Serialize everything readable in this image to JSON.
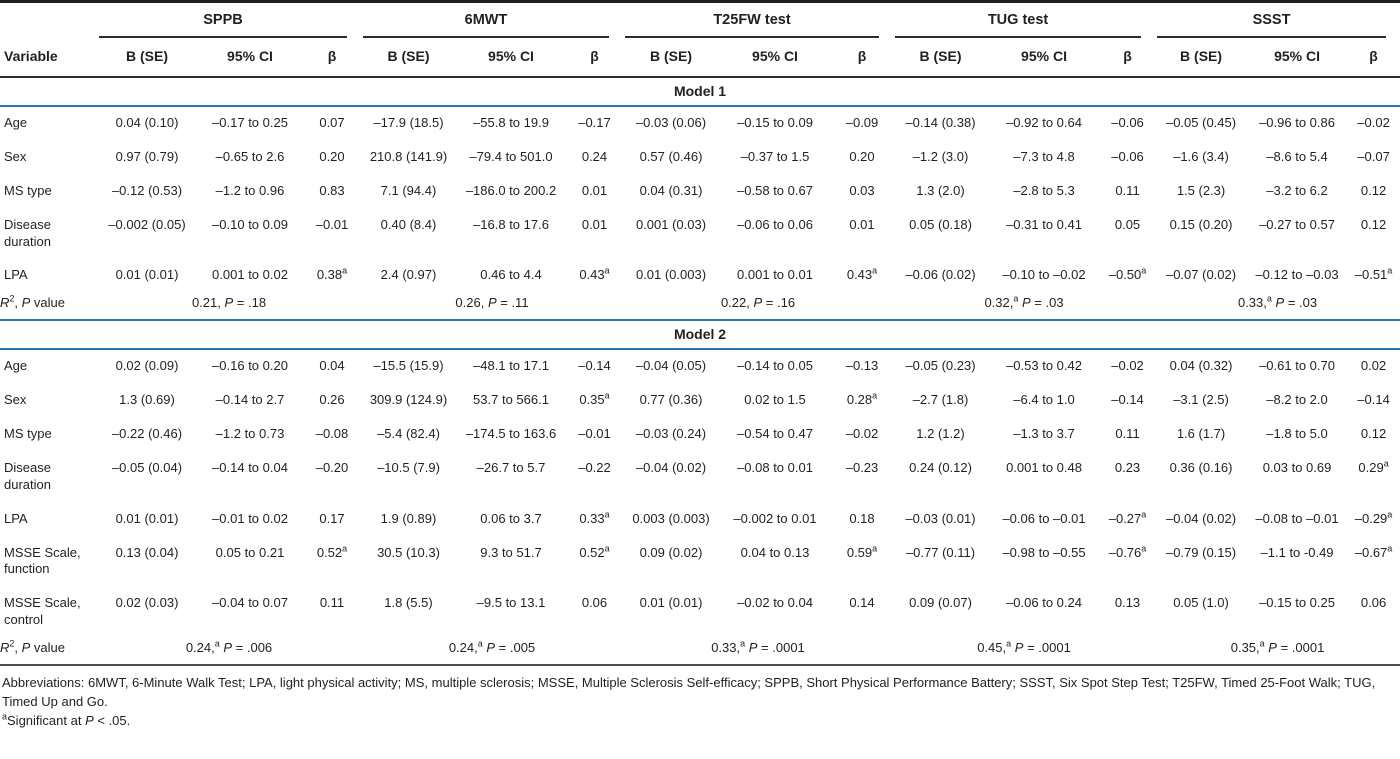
{
  "table": {
    "groups": [
      {
        "label": "SPPB"
      },
      {
        "label": "6MWT"
      },
      {
        "label": "T25FW test"
      },
      {
        "label": "TUG test"
      },
      {
        "label": "SSST"
      }
    ],
    "subheaders": {
      "variable": "Variable",
      "b_se": "B (SE)",
      "ci": "95% CI",
      "beta": "β"
    },
    "sections": [
      {
        "title": "Model 1",
        "rows": [
          {
            "variable": "Age",
            "cells": [
              [
                "0.04 (0.10)",
                "–0.17 to 0.25",
                "0.07"
              ],
              [
                "–17.9 (18.5)",
                "–55.8 to 19.9",
                "–0.17"
              ],
              [
                "–0.03 (0.06)",
                "–0.15 to 0.09",
                "–0.09"
              ],
              [
                "–0.14 (0.38)",
                "–0.92 to 0.64",
                "–0.06"
              ],
              [
                "–0.05 (0.45)",
                "–0.96 to 0.86",
                "–0.02"
              ]
            ]
          },
          {
            "variable": "Sex",
            "cells": [
              [
                "0.97 (0.79)",
                "–0.65 to 2.6",
                "0.20"
              ],
              [
                "210.8 (141.9)",
                "–79.4 to 501.0",
                "0.24"
              ],
              [
                "0.57 (0.46)",
                "–0.37 to 1.5",
                "0.20"
              ],
              [
                "–1.2 (3.0)",
                "–7.3 to 4.8",
                "–0.06"
              ],
              [
                "–1.6 (3.4)",
                "–8.6 to 5.4",
                "–0.07"
              ]
            ]
          },
          {
            "variable": "MS type",
            "cells": [
              [
                "–0.12 (0.53)",
                "–1.2 to 0.96",
                "0.83"
              ],
              [
                "7.1 (94.4)",
                "–186.0 to 200.2",
                "0.01"
              ],
              [
                "0.04 (0.31)",
                "–0.58 to 0.67",
                "0.03"
              ],
              [
                "1.3 (2.0)",
                "–2.8 to 5.3",
                "0.11"
              ],
              [
                "1.5 (2.3)",
                "–3.2 to 6.2",
                "0.12"
              ]
            ]
          },
          {
            "variable": "Disease duration",
            "cells": [
              [
                "–0.002 (0.05)",
                "–0.10 to 0.09",
                "–0.01"
              ],
              [
                "0.40 (8.4)",
                "–16.8 to 17.6",
                "0.01"
              ],
              [
                "0.001 (0.03)",
                "–0.06 to 0.06",
                "0.01"
              ],
              [
                "0.05 (0.18)",
                "–0.31 to 0.41",
                "0.05"
              ],
              [
                "0.15 (0.20)",
                "–0.27 to 0.57",
                "0.12"
              ]
            ]
          },
          {
            "variable": "LPA",
            "cells": [
              [
                "0.01 (0.01)",
                "0.001 to 0.02",
                "0.38ᵃ"
              ],
              [
                "2.4 (0.97)",
                "0.46 to 4.4",
                "0.43ᵃ"
              ],
              [
                "0.01 (0.003)",
                "0.001 to 0.01",
                "0.43ᵃ"
              ],
              [
                "–0.06 (0.02)",
                "–0.10 to –0.02",
                "–0.50ᵃ"
              ],
              [
                "–0.07 (0.02)",
                "–0.12 to –0.03",
                "–0.51ᵃ"
              ]
            ]
          }
        ],
        "r2_row": {
          "label": "R2, P value",
          "values": [
            "0.21, P = .18",
            "0.26, P = .11",
            "0.22, P = .16",
            "0.32,ᵃ P = .03",
            "0.33,ᵃ P = .03"
          ]
        }
      },
      {
        "title": "Model 2",
        "rows": [
          {
            "variable": "Age",
            "cells": [
              [
                "0.02 (0.09)",
                "–0.16 to 0.20",
                "0.04"
              ],
              [
                "–15.5 (15.9)",
                "–48.1 to 17.1",
                "–0.14"
              ],
              [
                "–0.04 (0.05)",
                "–0.14 to 0.05",
                "–0.13"
              ],
              [
                "–0.05 (0.23)",
                "–0.53 to 0.42",
                "–0.02"
              ],
              [
                "0.04 (0.32)",
                "–0.61 to 0.70",
                "0.02"
              ]
            ]
          },
          {
            "variable": "Sex",
            "cells": [
              [
                "1.3 (0.69)",
                "–0.14 to 2.7",
                "0.26"
              ],
              [
                "309.9 (124.9)",
                "53.7 to 566.1",
                "0.35ᵃ"
              ],
              [
                "0.77 (0.36)",
                "0.02 to 1.5",
                "0.28ᵃ"
              ],
              [
                "–2.7 (1.8)",
                "–6.4 to 1.0",
                "–0.14"
              ],
              [
                "–3.1 (2.5)",
                "–8.2 to 2.0",
                "–0.14"
              ]
            ]
          },
          {
            "variable": "MS type",
            "cells": [
              [
                "–0.22 (0.46)",
                "–1.2 to 0.73",
                "–0.08"
              ],
              [
                "–5.4 (82.4)",
                "–174.5 to 163.6",
                "–0.01"
              ],
              [
                "–0.03 (0.24)",
                "–0.54 to 0.47",
                "–0.02"
              ],
              [
                "1.2 (1.2)",
                "–1.3 to 3.7",
                "0.11"
              ],
              [
                "1.6 (1.7)",
                "–1.8 to 5.0",
                "0.12"
              ]
            ]
          },
          {
            "variable": "Disease duration",
            "cells": [
              [
                "–0.05 (0.04)",
                "–0.14 to 0.04",
                "–0.20"
              ],
              [
                "–10.5 (7.9)",
                "–26.7 to 5.7",
                "–0.22"
              ],
              [
                "–0.04 (0.02)",
                "–0.08 to 0.01",
                "–0.23"
              ],
              [
                "0.24 (0.12)",
                "0.001 to 0.48",
                "0.23"
              ],
              [
                "0.36 (0.16)",
                "0.03 to 0.69",
                "0.29ᵃ"
              ]
            ]
          },
          {
            "variable": "LPA",
            "cells": [
              [
                "0.01 (0.01)",
                "–0.01 to 0.02",
                "0.17"
              ],
              [
                "1.9 (0.89)",
                "0.06 to 3.7",
                "0.33ᵃ"
              ],
              [
                "0.003 (0.003)",
                "–0.002 to 0.01",
                "0.18"
              ],
              [
                "–0.03 (0.01)",
                "–0.06 to –0.01",
                "–0.27ᵃ"
              ],
              [
                "–0.04 (0.02)",
                "–0.08 to –0.01",
                "–0.29ᵃ"
              ]
            ]
          },
          {
            "variable": "MSSE Scale, function",
            "cells": [
              [
                "0.13 (0.04)",
                "0.05 to 0.21",
                "0.52ᵃ"
              ],
              [
                "30.5 (10.3)",
                "9.3 to 51.7",
                "0.52ᵃ"
              ],
              [
                "0.09 (0.02)",
                "0.04 to 0.13",
                "0.59ᵃ"
              ],
              [
                "–0.77 (0.11)",
                "–0.98 to –0.55",
                "–0.76ᵃ"
              ],
              [
                "–0.79 (0.15)",
                "–1.1 to -0.49",
                "–0.67ᵃ"
              ]
            ]
          },
          {
            "variable": "MSSE Scale, control",
            "cells": [
              [
                "0.02 (0.03)",
                "–0.04 to 0.07",
                "0.11"
              ],
              [
                "1.8 (5.5)",
                "–9.5 to 13.1",
                "0.06"
              ],
              [
                "0.01 (0.01)",
                "–0.02 to 0.04",
                "0.14"
              ],
              [
                "0.09 (0.07)",
                "–0.06 to 0.24",
                "0.13"
              ],
              [
                "0.05 (1.0)",
                "–0.15 to 0.25",
                "0.06"
              ]
            ]
          }
        ],
        "r2_row": {
          "label": "R2, P value",
          "values": [
            "0.24,ᵃ P = .006",
            "0.24,ᵃ P = .005",
            "0.33,ᵃ P = .0001",
            "0.45,ᵃ P = .0001",
            "0.35,ᵃ P = .0001"
          ]
        }
      }
    ],
    "footnotes": [
      "Abbreviations: 6MWT, 6-Minute Walk Test; LPA, light physical activity; MS, multiple sclerosis; MSSE, Multiple Sclerosis Self-efficacy; SPPB, Short Physical Performance Battery; SSST, Six Spot Step Test; T25FW, Timed 25-Foot Walk; TUG, Timed Up and Go.",
      "ᵃSignificant at P < .05."
    ],
    "colors": {
      "rule_dark": "#231f20",
      "rule_blue": "#2d73b6"
    }
  }
}
